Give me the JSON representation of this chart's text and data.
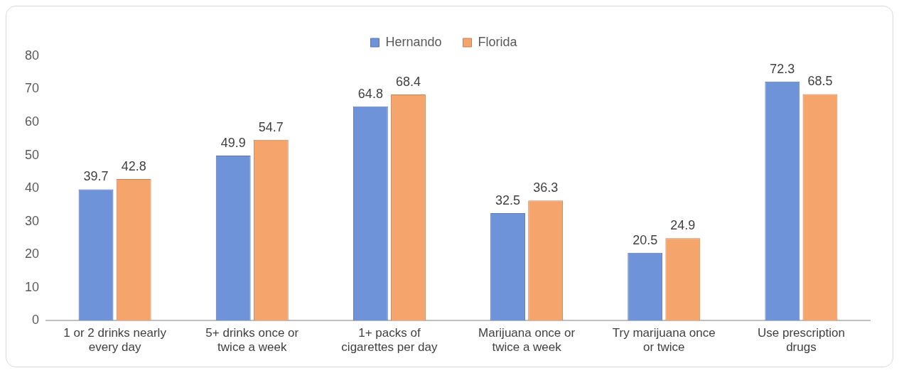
{
  "chart_data": {
    "type": "bar",
    "categories": [
      "1 or 2 drinks nearly every day",
      "5+ drinks once or twice a week",
      "1+ packs of cigarettes per day",
      "Marijuana once or twice a week",
      "Try marijuana once or twice",
      "Use prescription drugs"
    ],
    "series": [
      {
        "name": "Hernando",
        "color": "#6f93d8",
        "values": [
          39.7,
          49.9,
          64.8,
          32.5,
          20.5,
          72.3
        ]
      },
      {
        "name": "Florida",
        "color": "#f5a46c",
        "values": [
          42.8,
          54.7,
          68.4,
          36.3,
          24.9,
          68.5
        ]
      }
    ],
    "ylim": [
      0,
      80
    ],
    "yticks": [
      0,
      10,
      20,
      30,
      40,
      50,
      60,
      70,
      80
    ],
    "grid": false,
    "legend": "top",
    "data_labels": true
  }
}
